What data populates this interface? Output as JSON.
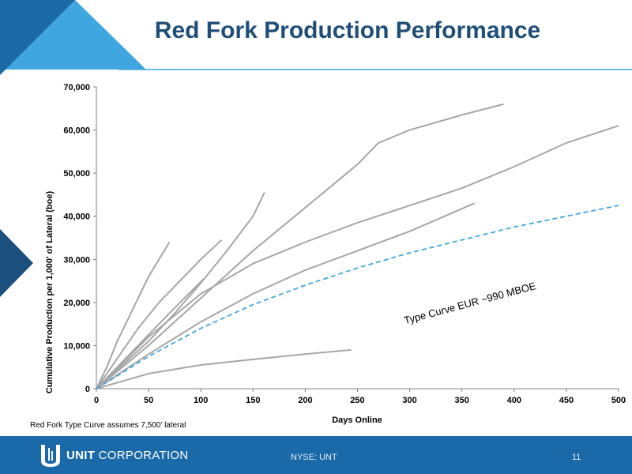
{
  "slide": {
    "title": "Red Fork Production Performance",
    "footnote": "Red Fork Type Curve assumes 7,500’ lateral",
    "company_bold": "UNIT",
    "company_rest": " CORPORATION",
    "ticker": "NYSE: UNT",
    "page_number": "11",
    "colors": {
      "title": "#1f4e79",
      "footer": "#1a69a8",
      "accent_light": "#3fa6df",
      "accent_dark": "#1b4f7e"
    }
  },
  "chart_data": {
    "type": "line",
    "xlabel": "Days Online",
    "ylabel": "Cumulative Production per 1,000' of Lateral (boe)",
    "xlim": [
      0,
      500
    ],
    "ylim": [
      0,
      70000
    ],
    "x_ticks": [
      "0",
      "50",
      "100",
      "150",
      "200",
      "250",
      "300",
      "350",
      "400",
      "450",
      "500"
    ],
    "y_ticks": [
      "0",
      "10,000",
      "20,000",
      "30,000",
      "40,000",
      "50,000",
      "60,000",
      "70,000"
    ],
    "grid": false,
    "annotation": "Type Curve EUR ~990 MBOE",
    "series_color": "#a6a6a6",
    "type_curve_color": "#3fa6df",
    "series": [
      {
        "style": "solid",
        "x": [
          0,
          10,
          20,
          30,
          40,
          50,
          60,
          70
        ],
        "y": [
          0,
          5000,
          11000,
          16000,
          21000,
          26000,
          30000,
          34000
        ]
      },
      {
        "style": "solid",
        "x": [
          0,
          20,
          40,
          60,
          80,
          100,
          120
        ],
        "y": [
          0,
          7000,
          14000,
          20000,
          25000,
          30000,
          34500
        ]
      },
      {
        "style": "solid",
        "x": [
          0,
          20,
          40,
          60,
          80,
          103
        ],
        "y": [
          0,
          5000,
          10000,
          15000,
          20000,
          25500
        ]
      },
      {
        "style": "solid",
        "x": [
          0,
          25,
          50,
          75,
          100,
          125,
          150,
          161
        ],
        "y": [
          0,
          5500,
          11000,
          17500,
          24500,
          32000,
          40000,
          45500
        ]
      },
      {
        "style": "solid",
        "x": [
          0,
          50,
          100,
          150,
          200,
          250,
          270,
          300,
          350,
          390
        ],
        "y": [
          0,
          10000,
          21000,
          32000,
          42000,
          52000,
          57000,
          60000,
          63500,
          66000
        ]
      },
      {
        "style": "solid",
        "x": [
          0,
          50,
          100,
          150,
          200,
          250,
          300,
          350,
          400,
          450,
          500
        ],
        "y": [
          0,
          12000,
          22000,
          29000,
          34000,
          38500,
          42500,
          46500,
          51500,
          57000,
          61000
        ]
      },
      {
        "style": "solid",
        "x": [
          0,
          50,
          100,
          150,
          200,
          250,
          300,
          362
        ],
        "y": [
          0,
          8000,
          15500,
          22000,
          27500,
          32000,
          36500,
          43000
        ]
      },
      {
        "style": "solid",
        "x": [
          0,
          50,
          100,
          150,
          200,
          244
        ],
        "y": [
          0,
          3500,
          5500,
          6800,
          8000,
          9000
        ]
      },
      {
        "style": "dashed",
        "name": "Type Curve",
        "x": [
          0,
          50,
          100,
          150,
          200,
          250,
          300,
          350,
          400,
          450,
          500
        ],
        "y": [
          0,
          7500,
          14000,
          19500,
          24000,
          28000,
          31500,
          34500,
          37500,
          40000,
          42500
        ]
      }
    ]
  }
}
